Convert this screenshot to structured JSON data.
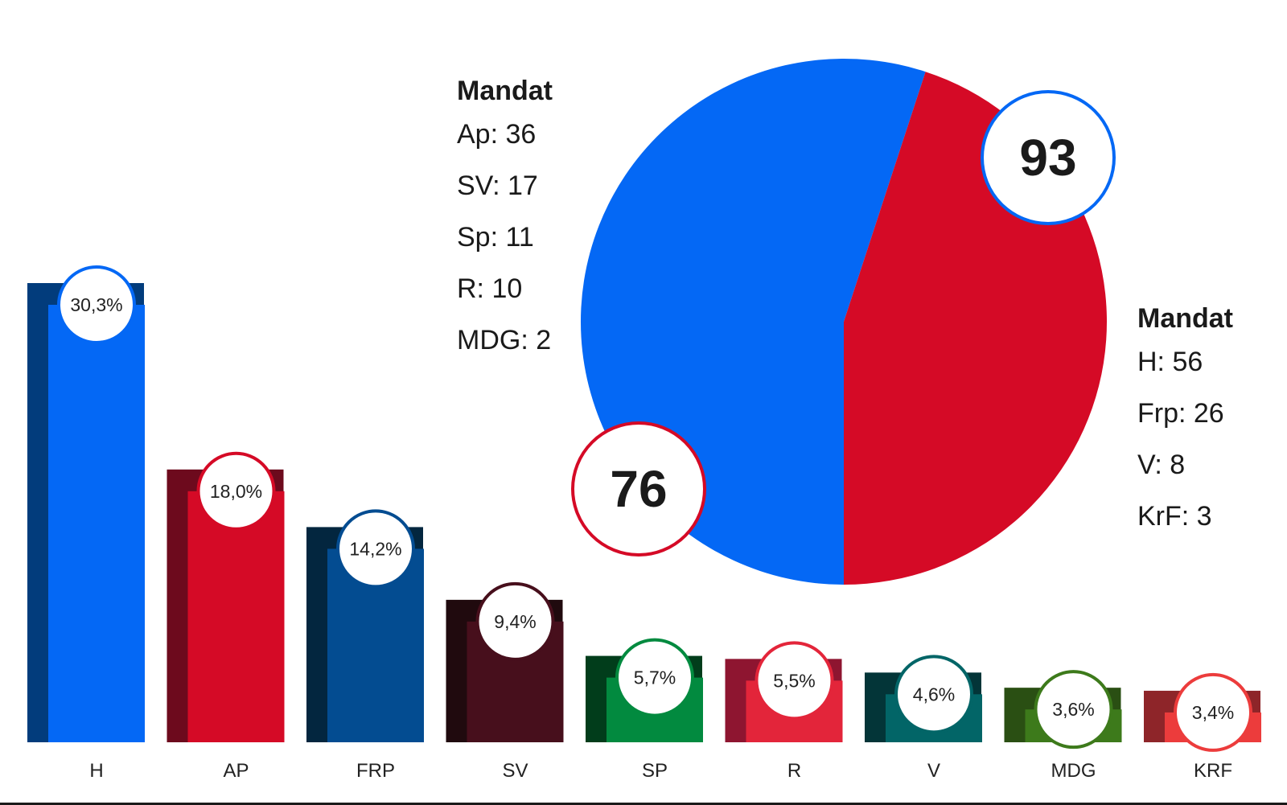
{
  "chart_data": {
    "type": "bar",
    "categories": [
      "H",
      "AP",
      "FRP",
      "SV",
      "SP",
      "R",
      "V",
      "MDG",
      "KRF"
    ],
    "values": [
      30.3,
      18.0,
      14.2,
      9.4,
      5.7,
      5.5,
      4.6,
      3.6,
      3.4
    ],
    "value_labels": [
      "30,3%",
      "18,0%",
      "14,2%",
      "9,4%",
      "5,7%",
      "5,5%",
      "4,6%",
      "3,6%",
      "3,4%"
    ],
    "colors": [
      "#0468F5",
      "#D50A26",
      "#034C91",
      "#470F1C",
      "#028A3F",
      "#E3253A",
      "#026567",
      "#3D7A1B",
      "#EC3C3C"
    ],
    "shadow_colors": [
      "#023C7C",
      "#6D0A1D",
      "#03263F",
      "#200A0E",
      "#013D1B",
      "#8E1530",
      "#033538",
      "#2A4F13",
      "#8E2529"
    ],
    "ylim": [
      0,
      30.3
    ],
    "grid": false
  },
  "seat_chart": {
    "type": "pie",
    "slices": [
      {
        "label": "93",
        "value": 93,
        "color": "#0468F5"
      },
      {
        "label": "76",
        "value": 76,
        "color": "#D50A26"
      }
    ]
  },
  "legend_left": {
    "title": "Mandat",
    "items": [
      "Ap: 36",
      "SV: 17",
      "Sp: 11",
      "R: 10",
      "MDG: 2"
    ]
  },
  "legend_right": {
    "title": "Mandat",
    "items": [
      "H: 56",
      "Frp: 26",
      "V: 8",
      "KrF: 3"
    ]
  }
}
